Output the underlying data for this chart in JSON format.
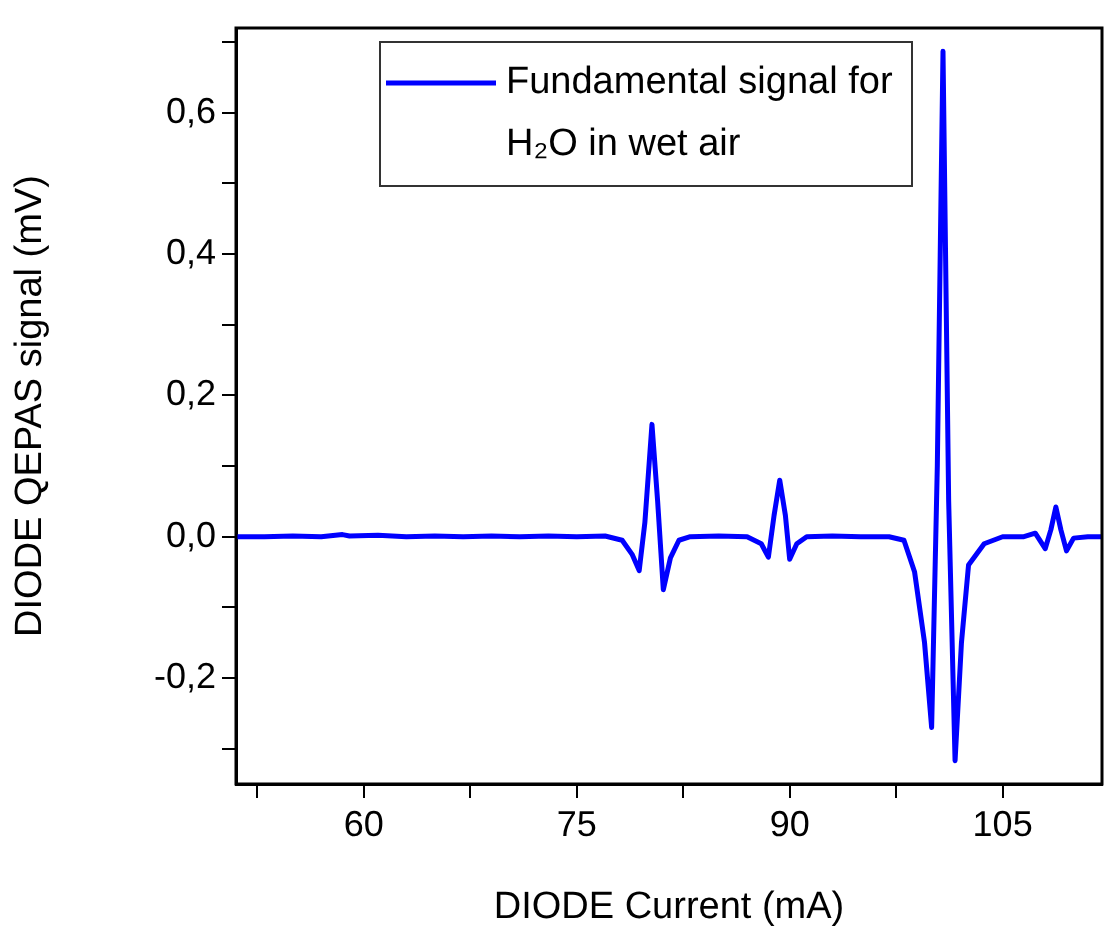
{
  "chart_data": {
    "type": "line",
    "xlabel": "DIODE Current (mA)",
    "ylabel": "DIODE QEPAS signal (mV)",
    "x": [
      51,
      53,
      55,
      57,
      58.5,
      59,
      61,
      63,
      65,
      67,
      69,
      71,
      73,
      75,
      77,
      78.2,
      78.9,
      79.4,
      79.8,
      80.3,
      80.7,
      81.1,
      81.6,
      82.2,
      83,
      85,
      87,
      88,
      88.5,
      88.9,
      89.3,
      89.7,
      90,
      90.5,
      91.2,
      93,
      95,
      97,
      98.05,
      98.8,
      99.5,
      100,
      100.4,
      100.8,
      101.2,
      101.65,
      102.1,
      102.6,
      103.7,
      105,
      106.5,
      107.3,
      108,
      108.4,
      108.75,
      109.1,
      109.5,
      110,
      111,
      112
    ],
    "series": [
      {
        "name": "Fundamental signal for H₂O in wet air",
        "color": "#0000ff",
        "values": [
          0,
          0,
          0.001,
          0,
          0.003,
          0.001,
          0.002,
          0,
          0.001,
          0,
          0.001,
          0,
          0.001,
          0,
          0.001,
          -0.005,
          -0.025,
          -0.048,
          0.02,
          0.159,
          0.05,
          -0.075,
          -0.03,
          -0.005,
          0,
          0.001,
          0,
          -0.01,
          -0.029,
          0.03,
          0.08,
          0.03,
          -0.032,
          -0.01,
          0,
          0.001,
          0,
          0,
          -0.005,
          -0.05,
          -0.15,
          -0.27,
          0.1,
          0.687,
          0.05,
          -0.317,
          -0.15,
          -0.04,
          -0.01,
          0,
          0,
          0.005,
          -0.017,
          0.01,
          0.042,
          0.01,
          -0.02,
          -0.002,
          0,
          0
        ]
      }
    ],
    "xlim": [
      51,
      112
    ],
    "xticks": [
      {
        "value": 52.5,
        "label": null
      },
      60,
      {
        "value": 67.5,
        "label": null
      },
      75,
      {
        "value": 82.5,
        "label": null
      },
      90,
      {
        "value": 97.5,
        "label": null
      },
      105
    ],
    "ylim": [
      -0.35,
      0.72
    ],
    "yticks": [
      {
        "value": -0.3,
        "label": null
      },
      {
        "value": -0.2,
        "label": "-0,2"
      },
      {
        "value": -0.1,
        "label": null
      },
      {
        "value": 0,
        "label": "0,0"
      },
      {
        "value": 0.1,
        "label": null
      },
      {
        "value": 0.2,
        "label": "0,2"
      },
      {
        "value": 0.3,
        "label": null
      },
      {
        "value": 0.4,
        "label": "0,4"
      },
      {
        "value": 0.5,
        "label": null
      },
      {
        "value": 0.6,
        "label": "0,6"
      },
      {
        "value": 0.7,
        "label": null
      }
    ],
    "grid": false,
    "legend": "top",
    "marker": "none",
    "line_style": "solid"
  }
}
